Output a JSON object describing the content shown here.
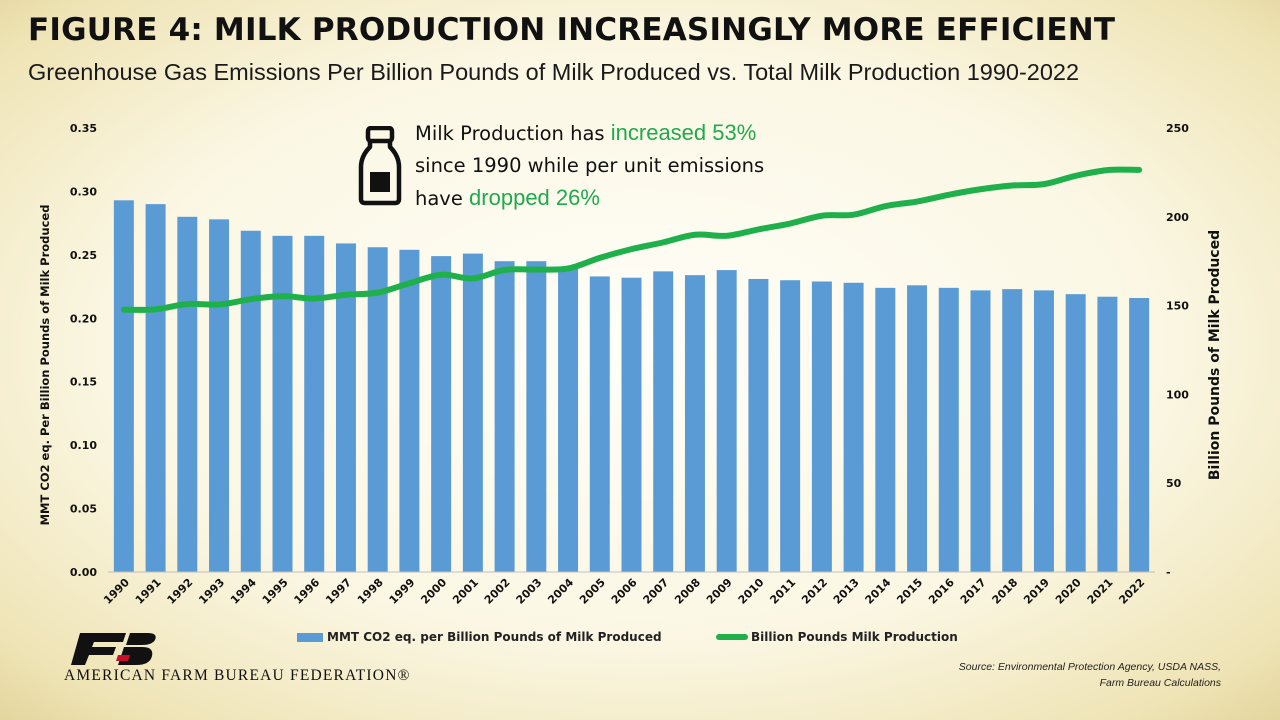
{
  "header": {
    "title": "FIGURE 4: MILK PRODUCTION INCREASINGLY MORE EFFICIENT",
    "subtitle": "Greenhouse Gas Emissions Per Billion Pounds of Milk Produced vs. Total Milk Production 1990-2022"
  },
  "callout": {
    "line1_prefix": "Milk Production has ",
    "line1_highlight": "increased 53%",
    "line2": "since 1990 while per unit emissions",
    "line3_prefix": "have ",
    "line3_highlight": "dropped 26%",
    "icon": "milk-bottle-icon"
  },
  "legend": {
    "bar_label": "MMT CO2 eq. per Billion Pounds of Milk Produced",
    "line_label": "Billion Pounds Milk Production"
  },
  "footer": {
    "organization": "AMERICAN FARM BUREAU FEDERATION®",
    "logo_icon": "fb-logo-icon",
    "source_line1": "Source: Environmental Protection Agency, USDA NASS,",
    "source_line2": "Farm Bureau Calculations"
  },
  "chart_data": {
    "type": "bar",
    "categories": [
      "1990",
      "1991",
      "1992",
      "1993",
      "1994",
      "1995",
      "1996",
      "1997",
      "1998",
      "1999",
      "2000",
      "2001",
      "2002",
      "2003",
      "2004",
      "2005",
      "2006",
      "2007",
      "2008",
      "2009",
      "2010",
      "2011",
      "2012",
      "2013",
      "2014",
      "2015",
      "2016",
      "2017",
      "2018",
      "2019",
      "2020",
      "2021",
      "2022"
    ],
    "series": [
      {
        "name": "MMT CO2 eq. per Billion Pounds of Milk Produced",
        "type": "bar",
        "axis": "left",
        "color": "#5b9bd5",
        "values": [
          0.293,
          0.29,
          0.28,
          0.278,
          0.269,
          0.265,
          0.265,
          0.259,
          0.256,
          0.254,
          0.249,
          0.251,
          0.245,
          0.245,
          0.24,
          0.233,
          0.232,
          0.237,
          0.234,
          0.238,
          0.231,
          0.23,
          0.229,
          0.228,
          0.224,
          0.226,
          0.224,
          0.222,
          0.223,
          0.222,
          0.219,
          0.217,
          0.216
        ]
      },
      {
        "name": "Billion Pounds Milk Production",
        "type": "line",
        "axis": "right",
        "color": "#1fb04c",
        "values": [
          147.7,
          147.9,
          150.9,
          150.6,
          153.6,
          155.3,
          154.0,
          156.1,
          157.3,
          162.6,
          167.4,
          165.3,
          170.1,
          170.3,
          170.9,
          176.9,
          181.8,
          185.6,
          189.9,
          189.3,
          192.9,
          196.2,
          200.6,
          201.2,
          206.0,
          208.6,
          212.4,
          215.5,
          217.6,
          218.4,
          223.1,
          226.3,
          226.4
        ]
      }
    ],
    "ylabel": "MMT CO2 eq. Per Billion Pounds of Milk Produced",
    "ylabel_right": "Billion Pounds of Milk Produced",
    "ylim": [
      0,
      0.35
    ],
    "yticks": [
      "0.00",
      "0.05",
      "0.10",
      "0.15",
      "0.20",
      "0.25",
      "0.30",
      "0.35"
    ],
    "ylim_right": [
      0,
      250
    ],
    "yticks_right": [
      "-",
      "50",
      "100",
      "150",
      "200",
      "250"
    ],
    "grid": false,
    "legend_position": "bottom"
  }
}
